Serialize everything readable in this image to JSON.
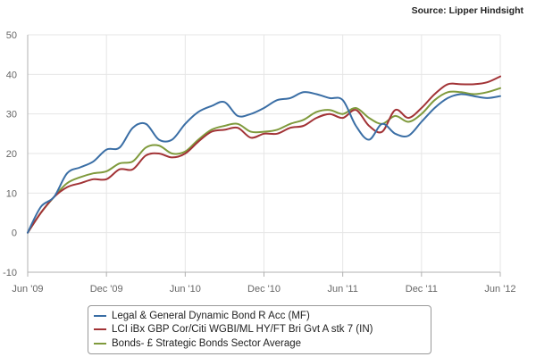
{
  "source": "Source: Lipper Hindsight",
  "colors": {
    "grid": "#e6e6e6",
    "axis": "#b0b0b0"
  },
  "chart_data": {
    "type": "line",
    "title": "",
    "xlabel": "",
    "ylabel": "",
    "ylim": [
      -10,
      50
    ],
    "y_ticks": [
      -10,
      0,
      10,
      20,
      30,
      40,
      50
    ],
    "x_range": [
      "2009-06",
      "2012-06"
    ],
    "x_tick_labels": [
      "Jun '09",
      "Dec '09",
      "Jun '10",
      "Dec '10",
      "Jun '11",
      "Dec '11",
      "Jun '12"
    ],
    "grid": true,
    "legend_position": "bottom",
    "x": [
      "2009-06",
      "2009-07",
      "2009-08",
      "2009-09",
      "2009-10",
      "2009-11",
      "2009-12",
      "2010-01",
      "2010-02",
      "2010-03",
      "2010-04",
      "2010-05",
      "2010-06",
      "2010-07",
      "2010-08",
      "2010-09",
      "2010-10",
      "2010-11",
      "2010-12",
      "2011-01",
      "2011-02",
      "2011-03",
      "2011-04",
      "2011-05",
      "2011-06",
      "2011-07",
      "2011-08",
      "2011-09",
      "2011-10",
      "2011-11",
      "2011-12",
      "2012-01",
      "2012-02",
      "2012-03",
      "2012-04",
      "2012-05",
      "2012-06"
    ],
    "series": [
      {
        "name": "Legal & General Dynamic Bond R Acc (MF)",
        "color": "#3a6ea5",
        "values": [
          0,
          6.5,
          9,
          15,
          16.5,
          18,
          21,
          21.5,
          26.5,
          27.5,
          23.5,
          23.5,
          27.5,
          30.5,
          32,
          33,
          29.5,
          30,
          31.5,
          33.5,
          34,
          35.5,
          35,
          34,
          33.5,
          27,
          23.5,
          27.5,
          25,
          24.5,
          28,
          31.5,
          34,
          35,
          34.5,
          34,
          34.5
        ]
      },
      {
        "name": "LCI iBx GBP Cor/Citi WGBI/ML HY/FT Bri Gvt A stk 7 (IN)",
        "color": "#a23336",
        "values": [
          0,
          5,
          9,
          11.5,
          12.5,
          13.5,
          13.5,
          16,
          16,
          19.5,
          20,
          19,
          20,
          23,
          25.5,
          26,
          26.5,
          24,
          25,
          25,
          26.5,
          27,
          29,
          30,
          29,
          31,
          27,
          25.5,
          31,
          29,
          31.5,
          35,
          37.5,
          37.5,
          37.5,
          38,
          39.5
        ]
      },
      {
        "name": "Bonds- £ Strategic Bonds Sector Average",
        "color": "#7f9a3c",
        "values": [
          0,
          5,
          9,
          12.5,
          14,
          15,
          15.5,
          17.5,
          18,
          21.5,
          22,
          20,
          20.5,
          23.5,
          26,
          27,
          27.5,
          25.5,
          25.5,
          26,
          27.5,
          28.5,
          30.5,
          31,
          30,
          31.5,
          29,
          27.5,
          29.5,
          28,
          30,
          33.5,
          35.5,
          35.5,
          35,
          35.5,
          36.5
        ]
      }
    ]
  }
}
